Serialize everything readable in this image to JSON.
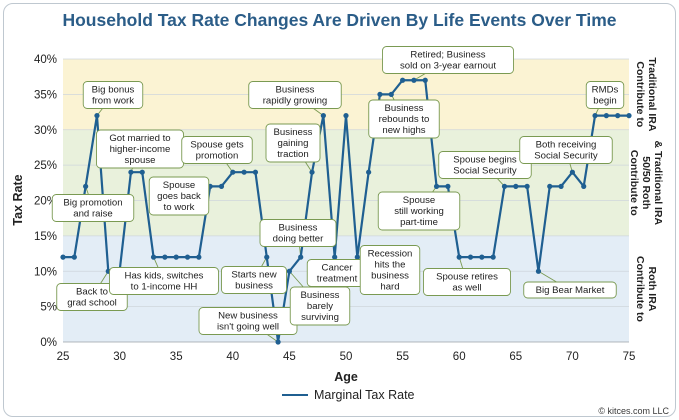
{
  "chart_data": {
    "type": "line",
    "title": "Household Tax Rate Changes Are Driven By Life Events Over Time",
    "xlabel": "Age",
    "ylabel": "Tax Rate",
    "xlim": [
      25,
      75
    ],
    "ylim": [
      0,
      40
    ],
    "x_ticks": [
      25,
      30,
      35,
      40,
      45,
      50,
      55,
      60,
      65,
      70,
      75
    ],
    "y_ticks": [
      "0%",
      "5%",
      "10%",
      "15%",
      "20%",
      "25%",
      "30%",
      "35%",
      "40%"
    ],
    "grid": "horizontal",
    "legend_position": "bottom-center",
    "series": [
      {
        "name": "Marginal Tax Rate",
        "color": "#1f5f91",
        "x": [
          25,
          26,
          27,
          28,
          29,
          30,
          31,
          32,
          33,
          34,
          35,
          36,
          37,
          38,
          39,
          40,
          41,
          42,
          43,
          44,
          45,
          46,
          47,
          48,
          49,
          50,
          51,
          52,
          53,
          54,
          55,
          56,
          57,
          58,
          59,
          60,
          61,
          62,
          63,
          64,
          65,
          66,
          67,
          68,
          69,
          70,
          71,
          72,
          73,
          74,
          75
        ],
        "y": [
          12,
          12,
          22,
          32,
          10,
          10,
          24,
          24,
          12,
          12,
          12,
          12,
          12,
          22,
          22,
          24,
          24,
          24,
          12,
          0,
          10,
          12,
          24,
          32,
          12,
          32,
          12,
          24,
          35,
          35,
          37,
          37,
          37,
          22,
          22,
          12,
          12,
          12,
          12,
          22,
          22,
          22,
          10,
          22,
          22,
          24,
          22,
          32,
          32,
          32,
          32
        ]
      }
    ],
    "bands": [
      {
        "name": "Contribute to Traditional IRA",
        "y_range": [
          30,
          40
        ],
        "color": "#fbf3d3"
      },
      {
        "name": "Contribute to 50/50 Roth & Traditional IRA",
        "y_range": [
          15,
          30
        ],
        "color": "#e9f1dc"
      },
      {
        "name": "Contribute to Roth IRA",
        "y_range": [
          0,
          15
        ],
        "color": "#e3edf6"
      }
    ],
    "band_labels": [
      {
        "lines": [
          "Contribute to",
          "Traditional IRA"
        ],
        "y_center": 35
      },
      {
        "lines": [
          "Contribute to",
          "50/50 Roth",
          "& Traditional IRA"
        ],
        "y_center": 22.5
      },
      {
        "lines": [
          "Contribute to",
          "Roth IRA"
        ],
        "y_center": 7.5
      }
    ],
    "annotations": [
      {
        "lines": [
          "Big promotion",
          "and raise"
        ],
        "x": 27,
        "y": 22
      },
      {
        "lines": [
          "Big bonus",
          "from work"
        ],
        "x": 28,
        "y": 32
      },
      {
        "lines": [
          "Back to",
          "grad school"
        ],
        "x": 29,
        "y": 10
      },
      {
        "lines": [
          "Got married to",
          "higher-income",
          "spouse"
        ],
        "x": 31,
        "y": 24
      },
      {
        "lines": [
          "Has kids, switches",
          "to 1-income HH"
        ],
        "x": 33,
        "y": 12
      },
      {
        "lines": [
          "Spouse",
          "goes back",
          "to work"
        ],
        "x": 38,
        "y": 22
      },
      {
        "lines": [
          "Spouse gets",
          "promotion"
        ],
        "x": 40,
        "y": 24
      },
      {
        "lines": [
          "Starts new",
          "business"
        ],
        "x": 43,
        "y": 12
      },
      {
        "lines": [
          "New business",
          "isn't going well"
        ],
        "x": 44,
        "y": 0
      },
      {
        "lines": [
          "Business",
          "doing better"
        ],
        "x": 46,
        "y": 12
      },
      {
        "lines": [
          "Business",
          "barely",
          "surviving"
        ],
        "x": 45,
        "y": 10
      },
      {
        "lines": [
          "Business",
          "gaining",
          "traction"
        ],
        "x": 47,
        "y": 24
      },
      {
        "lines": [
          "Business",
          "rapidly growing"
        ],
        "x": 48,
        "y": 32
      },
      {
        "lines": [
          "Cancer",
          "treatment"
        ],
        "x": 49,
        "y": 12
      },
      {
        "lines": [
          "Recession",
          "hits the",
          "business",
          "hard"
        ],
        "x": 51,
        "y": 12
      },
      {
        "lines": [
          "Business",
          "rebounds to",
          "new highs"
        ],
        "x": 54,
        "y": 35
      },
      {
        "lines": [
          "Retired; Business",
          "sold on 3-year earnout"
        ],
        "x": 56,
        "y": 37
      },
      {
        "lines": [
          "Spouse",
          "still working",
          "part-time"
        ],
        "x": 58,
        "y": 22
      },
      {
        "lines": [
          "Spouse begins",
          "Social Security"
        ],
        "x": 64,
        "y": 22
      },
      {
        "lines": [
          "Spouse retires",
          "as well"
        ],
        "x": 60,
        "y": 12
      },
      {
        "lines": [
          "Big Bear Market"
        ],
        "x": 67,
        "y": 10
      },
      {
        "lines": [
          "Both receiving",
          "Social Security"
        ],
        "x": 70,
        "y": 24
      },
      {
        "lines": [
          "RMDs",
          "begin"
        ],
        "x": 72,
        "y": 32
      }
    ]
  },
  "credit": "© kitces.com LLC"
}
